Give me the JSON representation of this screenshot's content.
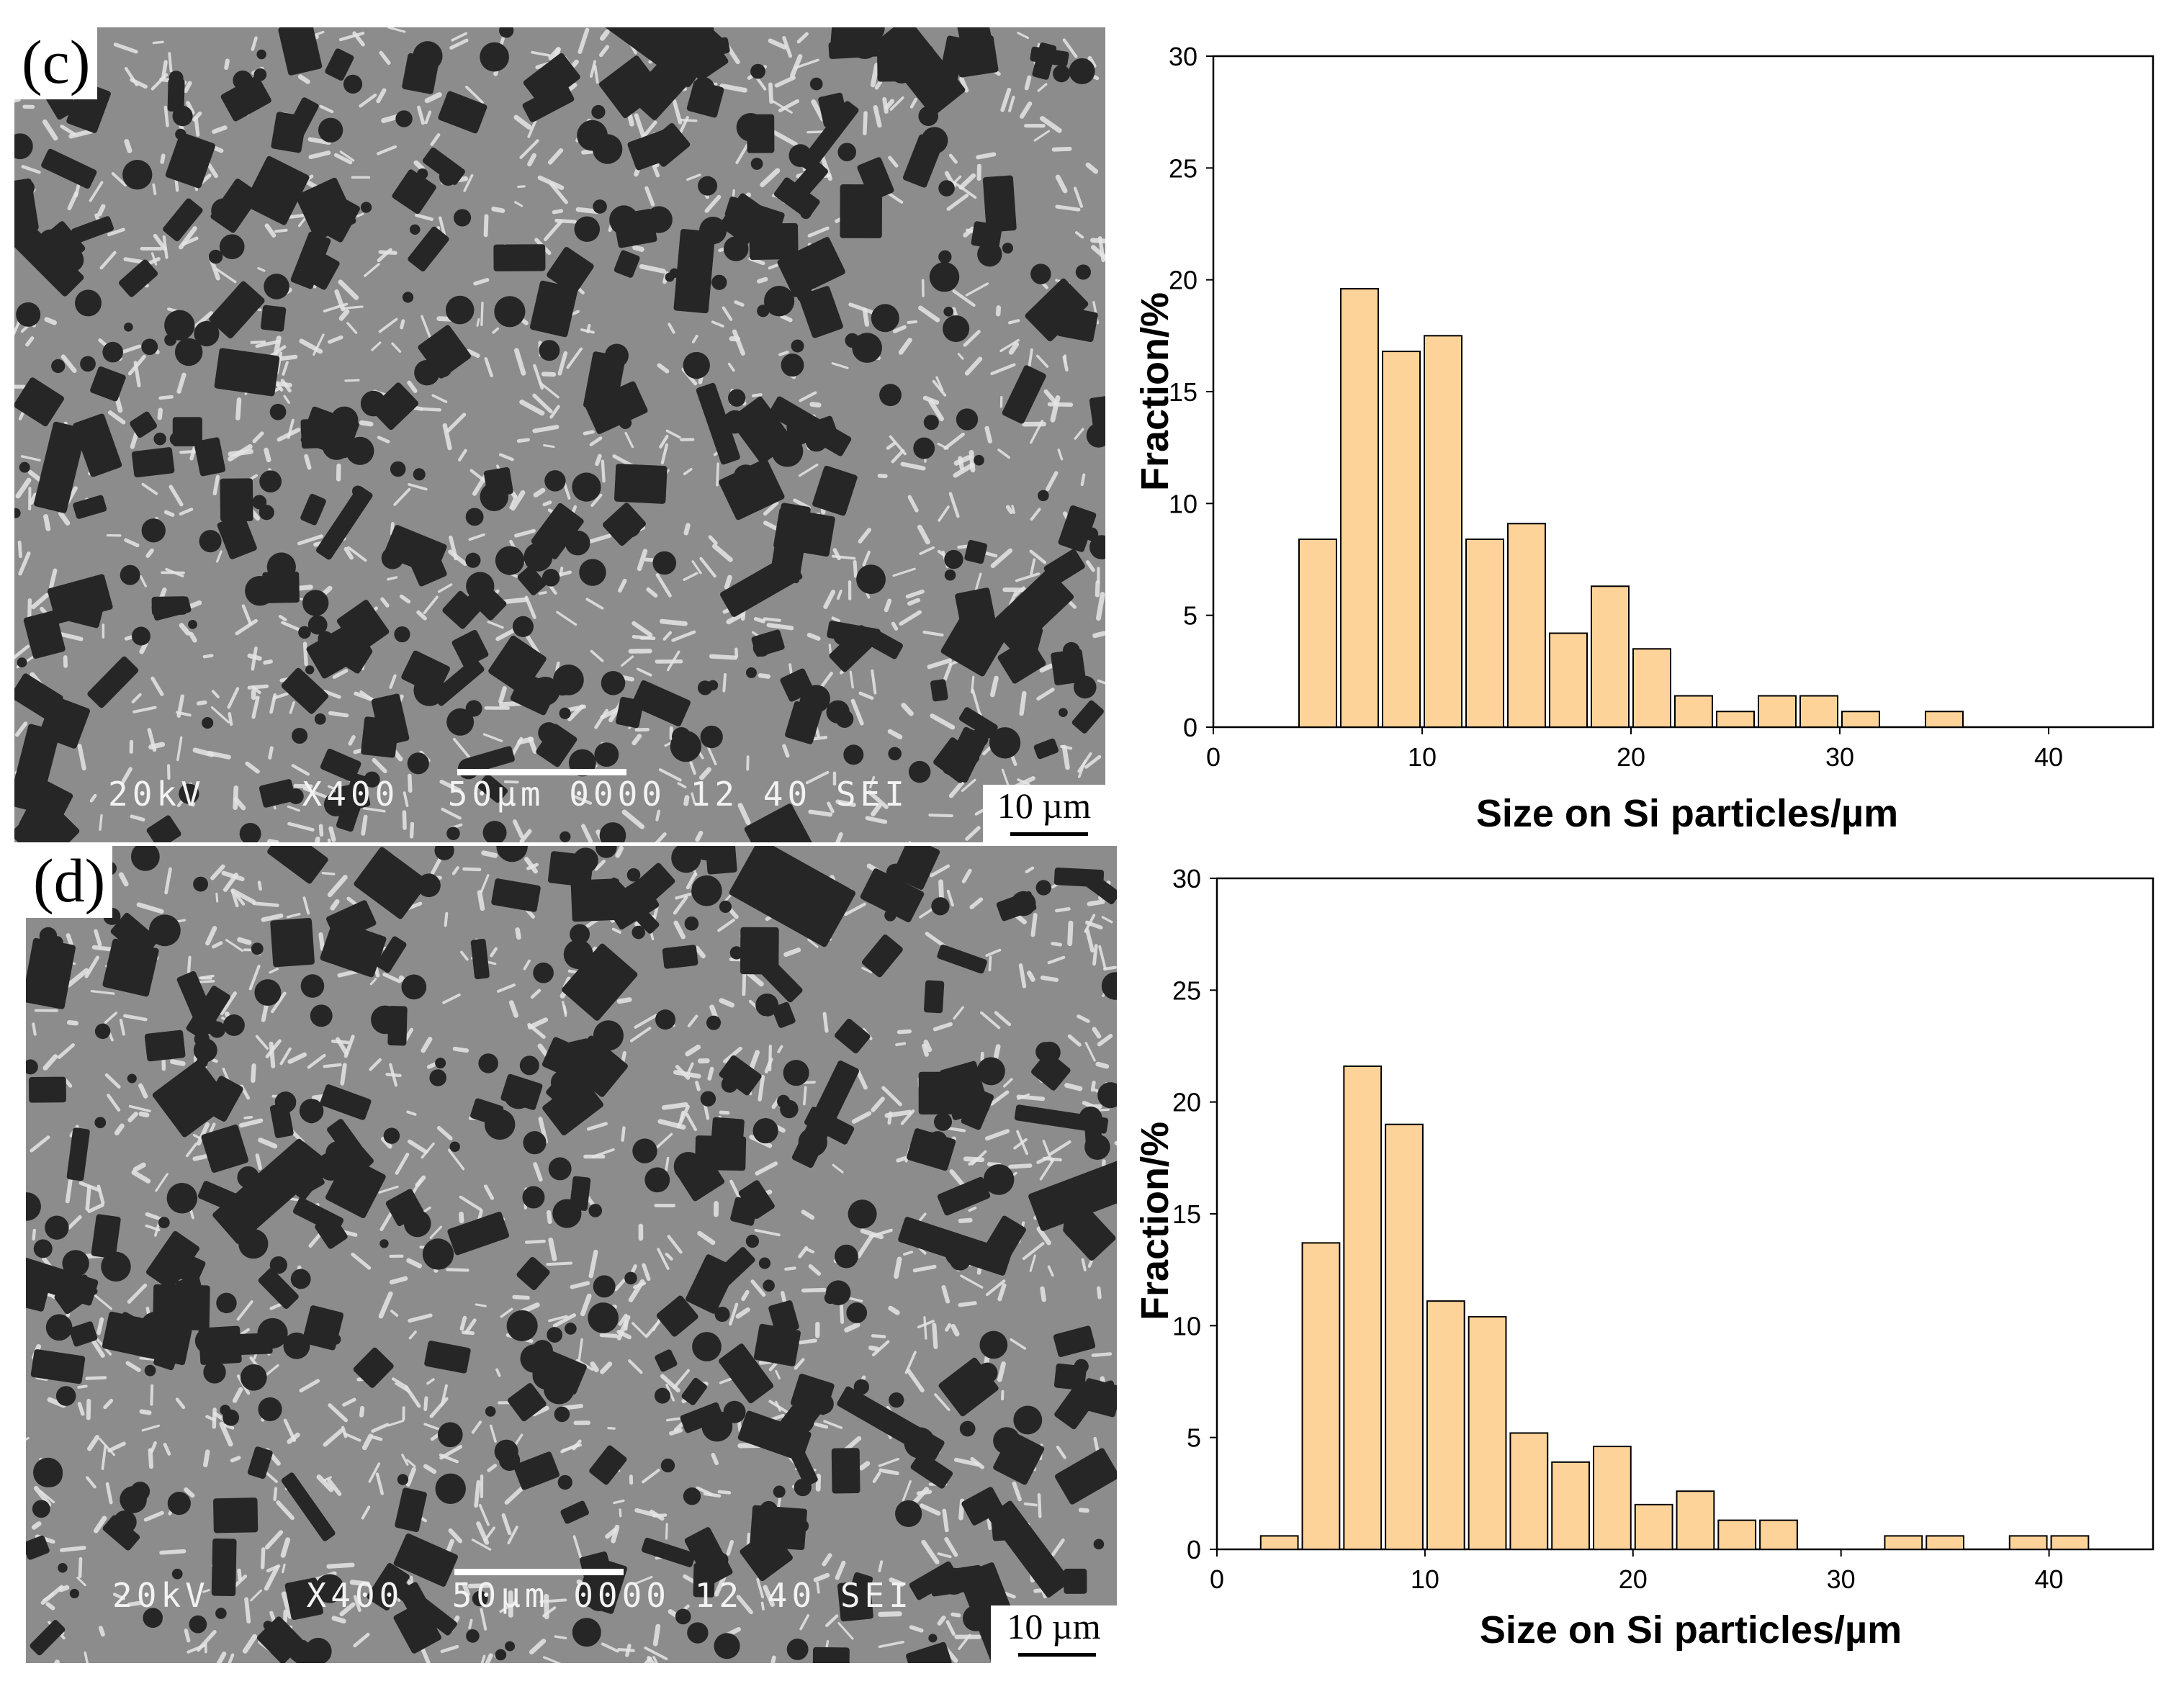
{
  "panels": [
    {
      "label": "(c)",
      "sem_info": "20kV    X400  50µm 0000 12 40 SEI",
      "scale_bar": "10 µm",
      "colors": {
        "matrix": "#8c8c8c",
        "particle": "#262626",
        "eutectic": "#e6e6e6"
      }
    },
    {
      "label": "(d)",
      "sem_info": "20kV    X400  50µm 0000 12 40 SEI",
      "scale_bar": "10 µm",
      "colors": {
        "matrix": "#8c8c8c",
        "particle": "#262626",
        "eutectic": "#e6e6e6"
      }
    }
  ],
  "chart_data": [
    {
      "type": "bar",
      "xlabel": "Size on Si particles/µm",
      "ylabel": "Fraction/%",
      "xlim": [
        0,
        45
      ],
      "ylim": [
        0,
        30
      ],
      "xticks": [
        0,
        10,
        20,
        30,
        40
      ],
      "yticks": [
        0,
        5,
        10,
        15,
        20,
        25,
        30
      ],
      "bin_width": 2,
      "bar_fill": "#fdd39a",
      "bar_stroke": "#000000",
      "x": [
        5,
        7,
        9,
        11,
        13,
        15,
        17,
        19,
        21,
        23,
        25,
        27,
        29,
        31,
        33,
        35
      ],
      "values": [
        8.4,
        19.6,
        16.8,
        17.5,
        8.4,
        9.1,
        4.2,
        6.3,
        3.5,
        1.4,
        0.7,
        1.4,
        1.4,
        0.7,
        0,
        0.7
      ]
    },
    {
      "type": "bar",
      "xlabel": "Size on Si particles/µm",
      "ylabel": "Fraction/%",
      "xlim": [
        0,
        45
      ],
      "ylim": [
        0,
        30
      ],
      "xticks": [
        0,
        10,
        20,
        30,
        40
      ],
      "yticks": [
        0,
        5,
        10,
        15,
        20,
        25,
        30
      ],
      "bin_width": 2,
      "bar_fill": "#fdd39a",
      "bar_stroke": "#000000",
      "x": [
        3,
        5,
        7,
        9,
        11,
        13,
        15,
        17,
        19,
        21,
        23,
        25,
        27,
        29,
        31,
        33,
        35,
        37,
        39,
        41
      ],
      "values": [
        0.6,
        13.7,
        21.6,
        19.0,
        11.1,
        10.4,
        5.2,
        3.9,
        4.6,
        2.0,
        2.6,
        1.3,
        1.3,
        0,
        0,
        0.6,
        0.6,
        0,
        0.6,
        0.6
      ]
    }
  ]
}
